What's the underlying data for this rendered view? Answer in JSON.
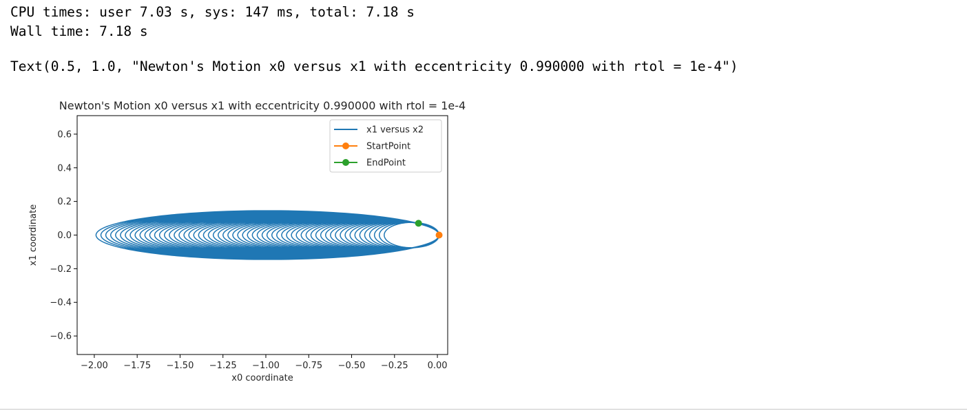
{
  "output": {
    "cpu_times": "CPU times: user 7.03 s, sys: 147 ms, total: 7.18 s",
    "wall_time": "Wall time: 7.18 s",
    "text_repr": "Text(0.5, 1.0, \"Newton's Motion x0 versus x1 with eccentricity 0.990000 with rtol = 1e-4\")"
  },
  "colors": {
    "series1": "#1f77b4",
    "start": "#ff7f0e",
    "end": "#2ca02c",
    "rule": "#c8c8c8"
  },
  "chart_data": {
    "type": "line",
    "title": "Newton's Motion x0 versus x1 with eccentricity 0.990000 with rtol = 1e-4",
    "xlabel": "x0 coordinate",
    "ylabel": "x1 coordinate",
    "xlim": [
      -2.1,
      0.06
    ],
    "ylim": [
      -0.71,
      0.71
    ],
    "xticks": [
      -2.0,
      -1.75,
      -1.5,
      -1.25,
      -1.0,
      -0.75,
      -0.5,
      -0.25,
      0.0
    ],
    "xtick_labels": [
      "−2.00",
      "−1.75",
      "−1.50",
      "−1.25",
      "−1.00",
      "−0.75",
      "−0.50",
      "−0.25",
      "0.00"
    ],
    "yticks": [
      0.6,
      0.4,
      0.2,
      0.0,
      -0.2,
      -0.4,
      -0.6
    ],
    "ytick_labels": [
      "0.6",
      "0.4",
      "0.2",
      "0.0",
      "−0.2",
      "−0.4",
      "−0.6"
    ],
    "grid": false,
    "legend_position": "upper right",
    "series": [
      {
        "name": "x1 versus x2",
        "kind": "precessing ellipse orbit",
        "eccentricity": 0.99,
        "start_x": 0.01,
        "start_y": 0.0,
        "innermost_left_x": -0.31,
        "innermost_half_height": 0.075,
        "outermost_left_x": -1.99,
        "outermost_half_height": 0.145,
        "orbits_shown": 60
      },
      {
        "name": "StartPoint",
        "x": [
          0.01
        ],
        "y": [
          0.0
        ]
      },
      {
        "name": "EndPoint",
        "x": [
          -0.11
        ],
        "y": [
          0.07
        ]
      }
    ]
  }
}
